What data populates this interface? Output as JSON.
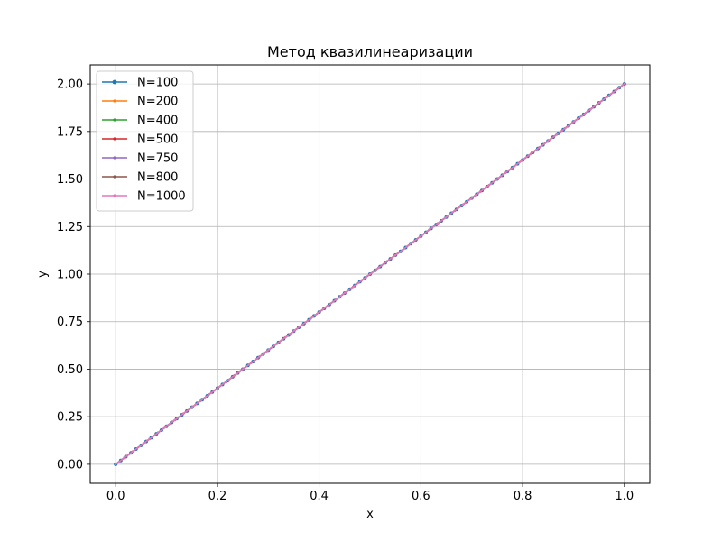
{
  "chart_data": {
    "type": "line",
    "title": "Метод квазилинеаризации",
    "xlabel": "x",
    "ylabel": "y",
    "xlim": [
      -0.05,
      1.05
    ],
    "ylim": [
      -0.1,
      2.1
    ],
    "xticks": [
      0.0,
      0.2,
      0.4,
      0.6,
      0.8,
      1.0
    ],
    "xtick_labels": [
      "0.0",
      "0.2",
      "0.4",
      "0.6",
      "0.8",
      "1.0"
    ],
    "yticks": [
      0.0,
      0.25,
      0.5,
      0.75,
      1.0,
      1.25,
      1.5,
      1.75,
      2.0
    ],
    "ytick_labels": [
      "0.00",
      "0.25",
      "0.50",
      "0.75",
      "1.00",
      "1.25",
      "1.50",
      "1.75",
      "2.00"
    ],
    "grid": true,
    "legend_position": "top-left",
    "series": [
      {
        "name": "N=100",
        "color": "#1f77b4",
        "x": [
          0.0,
          1.0
        ],
        "y": [
          0.0,
          2.0
        ]
      },
      {
        "name": "N=200",
        "color": "#ff7f0e",
        "x": [
          0.0,
          1.0
        ],
        "y": [
          0.0,
          2.0
        ]
      },
      {
        "name": "N=400",
        "color": "#2ca02c",
        "x": [
          0.0,
          1.0
        ],
        "y": [
          0.0,
          2.0
        ]
      },
      {
        "name": "N=500",
        "color": "#d62728",
        "x": [
          0.0,
          1.0
        ],
        "y": [
          0.0,
          2.0
        ]
      },
      {
        "name": "N=750",
        "color": "#9467bd",
        "x": [
          0.0,
          1.0
        ],
        "y": [
          0.0,
          2.0
        ]
      },
      {
        "name": "N=800",
        "color": "#8c564b",
        "x": [
          0.0,
          1.0
        ],
        "y": [
          0.0,
          2.0
        ]
      },
      {
        "name": "N=1000",
        "color": "#e377c2",
        "x": [
          0.0,
          1.0
        ],
        "y": [
          0.0,
          2.0
        ]
      }
    ]
  }
}
